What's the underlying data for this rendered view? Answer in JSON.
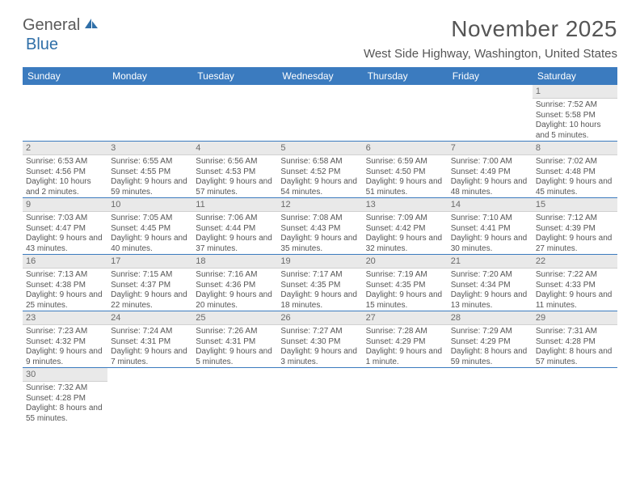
{
  "brand": {
    "part1": "General",
    "part2": "Blue"
  },
  "header": {
    "month_title": "November 2025",
    "location": "West Side Highway, Washington, United States"
  },
  "colors": {
    "header_blue": "#3b7bbf",
    "row_divider": "#3b7bbf",
    "daynum_bg": "#e9e9e9",
    "text_gray": "#555555"
  },
  "weekday_labels": [
    "Sunday",
    "Monday",
    "Tuesday",
    "Wednesday",
    "Thursday",
    "Friday",
    "Saturday"
  ],
  "grid": {
    "columns": 7,
    "rows": 6
  },
  "days": {
    "1": {
      "sunrise": "7:52 AM",
      "sunset": "5:58 PM",
      "daylight": "10 hours and 5 minutes."
    },
    "2": {
      "sunrise": "6:53 AM",
      "sunset": "4:56 PM",
      "daylight": "10 hours and 2 minutes."
    },
    "3": {
      "sunrise": "6:55 AM",
      "sunset": "4:55 PM",
      "daylight": "9 hours and 59 minutes."
    },
    "4": {
      "sunrise": "6:56 AM",
      "sunset": "4:53 PM",
      "daylight": "9 hours and 57 minutes."
    },
    "5": {
      "sunrise": "6:58 AM",
      "sunset": "4:52 PM",
      "daylight": "9 hours and 54 minutes."
    },
    "6": {
      "sunrise": "6:59 AM",
      "sunset": "4:50 PM",
      "daylight": "9 hours and 51 minutes."
    },
    "7": {
      "sunrise": "7:00 AM",
      "sunset": "4:49 PM",
      "daylight": "9 hours and 48 minutes."
    },
    "8": {
      "sunrise": "7:02 AM",
      "sunset": "4:48 PM",
      "daylight": "9 hours and 45 minutes."
    },
    "9": {
      "sunrise": "7:03 AM",
      "sunset": "4:47 PM",
      "daylight": "9 hours and 43 minutes."
    },
    "10": {
      "sunrise": "7:05 AM",
      "sunset": "4:45 PM",
      "daylight": "9 hours and 40 minutes."
    },
    "11": {
      "sunrise": "7:06 AM",
      "sunset": "4:44 PM",
      "daylight": "9 hours and 37 minutes."
    },
    "12": {
      "sunrise": "7:08 AM",
      "sunset": "4:43 PM",
      "daylight": "9 hours and 35 minutes."
    },
    "13": {
      "sunrise": "7:09 AM",
      "sunset": "4:42 PM",
      "daylight": "9 hours and 32 minutes."
    },
    "14": {
      "sunrise": "7:10 AM",
      "sunset": "4:41 PM",
      "daylight": "9 hours and 30 minutes."
    },
    "15": {
      "sunrise": "7:12 AM",
      "sunset": "4:39 PM",
      "daylight": "9 hours and 27 minutes."
    },
    "16": {
      "sunrise": "7:13 AM",
      "sunset": "4:38 PM",
      "daylight": "9 hours and 25 minutes."
    },
    "17": {
      "sunrise": "7:15 AM",
      "sunset": "4:37 PM",
      "daylight": "9 hours and 22 minutes."
    },
    "18": {
      "sunrise": "7:16 AM",
      "sunset": "4:36 PM",
      "daylight": "9 hours and 20 minutes."
    },
    "19": {
      "sunrise": "7:17 AM",
      "sunset": "4:35 PM",
      "daylight": "9 hours and 18 minutes."
    },
    "20": {
      "sunrise": "7:19 AM",
      "sunset": "4:35 PM",
      "daylight": "9 hours and 15 minutes."
    },
    "21": {
      "sunrise": "7:20 AM",
      "sunset": "4:34 PM",
      "daylight": "9 hours and 13 minutes."
    },
    "22": {
      "sunrise": "7:22 AM",
      "sunset": "4:33 PM",
      "daylight": "9 hours and 11 minutes."
    },
    "23": {
      "sunrise": "7:23 AM",
      "sunset": "4:32 PM",
      "daylight": "9 hours and 9 minutes."
    },
    "24": {
      "sunrise": "7:24 AM",
      "sunset": "4:31 PM",
      "daylight": "9 hours and 7 minutes."
    },
    "25": {
      "sunrise": "7:26 AM",
      "sunset": "4:31 PM",
      "daylight": "9 hours and 5 minutes."
    },
    "26": {
      "sunrise": "7:27 AM",
      "sunset": "4:30 PM",
      "daylight": "9 hours and 3 minutes."
    },
    "27": {
      "sunrise": "7:28 AM",
      "sunset": "4:29 PM",
      "daylight": "9 hours and 1 minute."
    },
    "28": {
      "sunrise": "7:29 AM",
      "sunset": "4:29 PM",
      "daylight": "8 hours and 59 minutes."
    },
    "29": {
      "sunrise": "7:31 AM",
      "sunset": "4:28 PM",
      "daylight": "8 hours and 57 minutes."
    },
    "30": {
      "sunrise": "7:32 AM",
      "sunset": "4:28 PM",
      "daylight": "8 hours and 55 minutes."
    }
  },
  "labels": {
    "sunrise_prefix": "Sunrise: ",
    "sunset_prefix": "Sunset: ",
    "daylight_prefix": "Daylight: "
  },
  "weeks": [
    [
      null,
      null,
      null,
      null,
      null,
      null,
      "1"
    ],
    [
      "2",
      "3",
      "4",
      "5",
      "6",
      "7",
      "8"
    ],
    [
      "9",
      "10",
      "11",
      "12",
      "13",
      "14",
      "15"
    ],
    [
      "16",
      "17",
      "18",
      "19",
      "20",
      "21",
      "22"
    ],
    [
      "23",
      "24",
      "25",
      "26",
      "27",
      "28",
      "29"
    ],
    [
      "30",
      null,
      null,
      null,
      null,
      null,
      null
    ]
  ]
}
